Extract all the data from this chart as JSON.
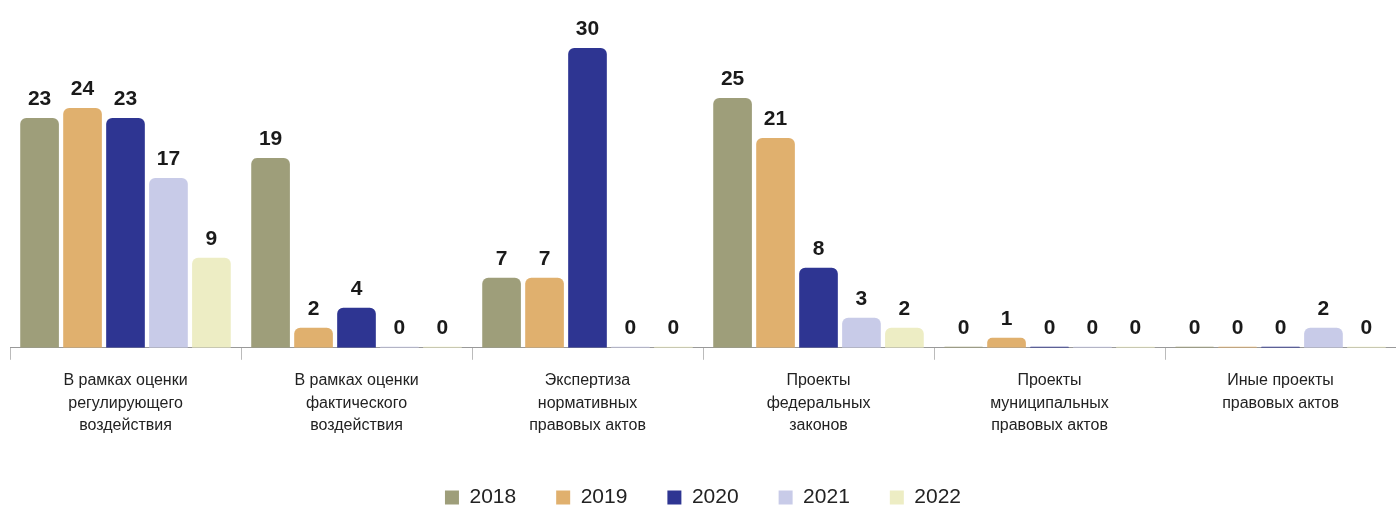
{
  "chart_data": {
    "type": "bar",
    "categories": [
      "В рамках оценки регулирующего воздействия",
      "В рамках оценки фактического воздействия",
      "Экспертиза нормативных правовых актов",
      "Проекты федеральных законов",
      "Проекты муниципальных правовых актов",
      "Иные проекты правовых актов"
    ],
    "series": [
      {
        "name": "2018",
        "color": "#9e9e7a",
        "values": [
          23,
          19,
          7,
          25,
          0,
          0
        ]
      },
      {
        "name": "2019",
        "color": "#e0b06e",
        "values": [
          24,
          2,
          7,
          21,
          1,
          0
        ]
      },
      {
        "name": "2020",
        "color": "#2e3592",
        "values": [
          23,
          4,
          30,
          8,
          0,
          0
        ]
      },
      {
        "name": "2021",
        "color": "#c8cbe8",
        "values": [
          17,
          0,
          0,
          3,
          0,
          2
        ]
      },
      {
        "name": "2022",
        "color": "#ededc4",
        "values": [
          9,
          0,
          0,
          2,
          0,
          0
        ]
      }
    ],
    "data_labels": true,
    "legend": "bottom",
    "grid": false
  }
}
